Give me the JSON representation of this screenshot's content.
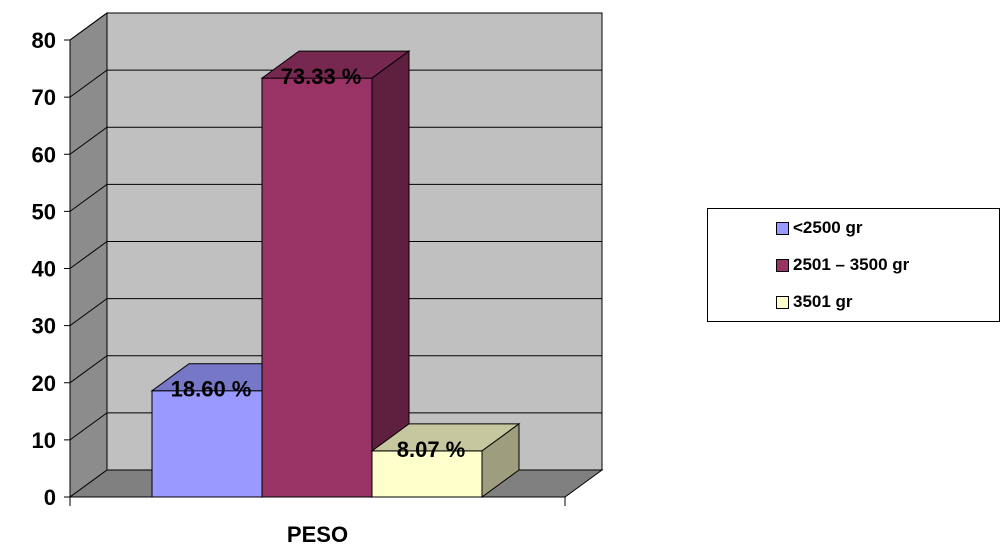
{
  "chart_data": {
    "type": "bar",
    "categories": [
      "PESO"
    ],
    "series": [
      {
        "name": "<2500 gr",
        "values": [
          18.6
        ],
        "label": "18.60 %",
        "color": "#9999ff"
      },
      {
        "name": "2501 – 3500 gr",
        "values": [
          73.33
        ],
        "label": "73.33 %",
        "color": "#993366"
      },
      {
        "name": "3501 gr",
        "values": [
          8.07
        ],
        "label": "8.07 %",
        "color": "#ffffcc"
      }
    ],
    "title": "",
    "xlabel": "",
    "ylabel": "",
    "ylim": [
      0,
      80
    ],
    "yticks": [
      "0",
      "10",
      "20",
      "30",
      "40",
      "50",
      "60",
      "70",
      "80"
    ],
    "grid": true,
    "legend_position": "right",
    "three_d": true,
    "wall_color": "#c0c0c0",
    "floor_color": "#808080"
  }
}
